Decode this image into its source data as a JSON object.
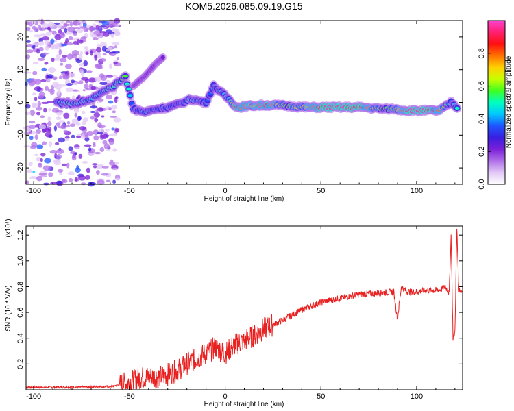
{
  "title": "KOM5.2026.085.09.19.G15",
  "chart_data": [
    {
      "type": "heatmap",
      "name": "spectrogram",
      "xlabel": "Height of straight line (km)",
      "ylabel": "Frequency (Hz)",
      "xlim": [
        -104,
        124
      ],
      "ylim": [
        -25,
        25
      ],
      "xticks": [
        -100,
        -50,
        0,
        50,
        100
      ],
      "yticks": [
        -20,
        -10,
        0,
        10,
        20
      ],
      "colorbar": {
        "label": "Normalized spectral amplitude",
        "range": [
          0,
          1
        ],
        "ticks": [
          0.0,
          0.2,
          0.4,
          0.6,
          0.8
        ],
        "colors": [
          "#ffffff",
          "#e2c8f6",
          "#b070e8",
          "#7a1fd8",
          "#3a1ee0",
          "#1e55ff",
          "#00c8ff",
          "#00ffc0",
          "#40ff20",
          "#c8ff00",
          "#ffd000",
          "#ff7000",
          "#ff1010",
          "#ff2070",
          "#ff40d0"
        ]
      },
      "ridge": [
        {
          "x": -88,
          "y": 0,
          "v": 0.35
        },
        {
          "x": -82,
          "y": -0.5,
          "v": 0.5
        },
        {
          "x": -76,
          "y": 0,
          "v": 0.45
        },
        {
          "x": -70,
          "y": 1,
          "v": 0.4
        },
        {
          "x": -64,
          "y": 3,
          "v": 0.45
        },
        {
          "x": -58,
          "y": 5,
          "v": 0.5
        },
        {
          "x": -52,
          "y": 8,
          "v": 0.55
        },
        {
          "x": -48,
          "y": -2,
          "v": 0.35
        },
        {
          "x": -42,
          "y": -3,
          "v": 0.4
        },
        {
          "x": -36,
          "y": -2,
          "v": 0.35
        },
        {
          "x": -30,
          "y": -1.5,
          "v": 0.35
        },
        {
          "x": -24,
          "y": -0.5,
          "v": 0.3
        },
        {
          "x": -18,
          "y": 1,
          "v": 0.45
        },
        {
          "x": -10,
          "y": 0,
          "v": 0.35
        },
        {
          "x": -6,
          "y": 5,
          "v": 0.35
        },
        {
          "x": -2,
          "y": 3,
          "v": 0.4
        },
        {
          "x": 2,
          "y": 1,
          "v": 0.45
        },
        {
          "x": 6,
          "y": -1.5,
          "v": 0.85
        },
        {
          "x": 14,
          "y": -1,
          "v": 0.7
        },
        {
          "x": 22,
          "y": -0.8,
          "v": 0.85
        },
        {
          "x": 32,
          "y": -1,
          "v": 0.55
        },
        {
          "x": 42,
          "y": -1.5,
          "v": 0.7
        },
        {
          "x": 52,
          "y": -1.5,
          "v": 0.9
        },
        {
          "x": 62,
          "y": -1.5,
          "v": 0.9
        },
        {
          "x": 72,
          "y": -1.5,
          "v": 0.85
        },
        {
          "x": 82,
          "y": -2,
          "v": 0.55
        },
        {
          "x": 88,
          "y": -2,
          "v": 0.6
        },
        {
          "x": 96,
          "y": -2.5,
          "v": 0.9
        },
        {
          "x": 104,
          "y": -2.5,
          "v": 0.9
        },
        {
          "x": 112,
          "y": -2.5,
          "v": 0.8
        },
        {
          "x": 118,
          "y": 0,
          "v": 0.35
        },
        {
          "x": 122,
          "y": -2,
          "v": 0.55
        }
      ],
      "side_branch": [
        {
          "x": -48,
          "y": 5
        },
        {
          "x": -42,
          "y": 8
        },
        {
          "x": -36,
          "y": 12
        },
        {
          "x": -32,
          "y": 14
        }
      ]
    },
    {
      "type": "line",
      "name": "snr",
      "xlabel": "Height of straight line (km)",
      "ylabel": "SNR (10 * V/V)",
      "y_scale_label": "(x10⁴)",
      "xlim": [
        -104,
        124
      ],
      "ylim": [
        0,
        1.27
      ],
      "xticks": [
        -100,
        -50,
        0,
        50,
        100
      ],
      "yticks": [
        0.2,
        0.4,
        0.6,
        0.8,
        1.0,
        1.2
      ],
      "ytick_labels": [
        "0.2",
        "0.4",
        "0.6",
        "0.8",
        "1.0",
        "1.2"
      ],
      "series": [
        {
          "name": "SNR",
          "color": "#e82020",
          "x": [
            -104,
            -80,
            -60,
            -55,
            -50,
            -45,
            -40,
            -35,
            -30,
            -25,
            -20,
            -15,
            -10,
            -5,
            0,
            5,
            10,
            15,
            20,
            30,
            40,
            50,
            60,
            70,
            80,
            88,
            90,
            92,
            95,
            100,
            105,
            110,
            113,
            115,
            117,
            118,
            119,
            120,
            121,
            122,
            124
          ],
          "y": [
            0.02,
            0.02,
            0.025,
            0.04,
            0.06,
            0.09,
            0.1,
            0.1,
            0.12,
            0.15,
            0.2,
            0.24,
            0.28,
            0.33,
            0.28,
            0.35,
            0.38,
            0.42,
            0.47,
            0.54,
            0.62,
            0.68,
            0.71,
            0.74,
            0.75,
            0.76,
            0.55,
            0.8,
            0.76,
            0.76,
            0.77,
            0.77,
            0.78,
            0.8,
            0.75,
            1.2,
            0.4,
            0.45,
            1.25,
            0.78,
            0.76
          ]
        }
      ]
    }
  ]
}
